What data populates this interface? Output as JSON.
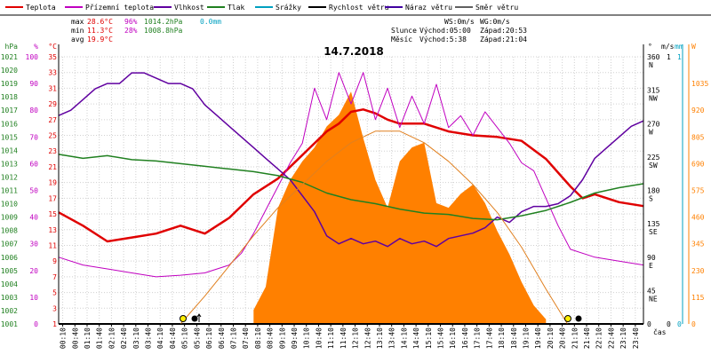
{
  "chart_data": {
    "type": "line",
    "title": "14.7.2018",
    "x_label": "čas",
    "x_ticks": [
      "00:10",
      "00:40",
      "01:10",
      "01:40",
      "02:10",
      "02:40",
      "03:10",
      "03:40",
      "04:10",
      "04:40",
      "05:10",
      "05:40",
      "06:10",
      "06:40",
      "07:10",
      "07:40",
      "08:10",
      "08:40",
      "09:10",
      "09:40",
      "10:10",
      "10:40",
      "11:10",
      "11:40",
      "12:10",
      "12:40",
      "13:10",
      "13:40",
      "14:10",
      "14:40",
      "15:10",
      "15:40",
      "16:10",
      "16:40",
      "17:10",
      "17:40",
      "18:10",
      "18:40",
      "19:10",
      "19:40",
      "20:10",
      "20:40",
      "21:10",
      "21:40",
      "22:10",
      "22:40",
      "23:10",
      "23:40"
    ],
    "legend": [
      {
        "name": "Teplota",
        "color": "#e00000"
      },
      {
        "name": "Přízemní teplota",
        "color": "#c000c0"
      },
      {
        "name": "Vlhkost",
        "color": "#6000a0"
      },
      {
        "name": "Tlak",
        "color": "#208020"
      },
      {
        "name": "Srážky",
        "color": "#00a0c0"
      },
      {
        "name": "Rychlost větru",
        "color": "#000000"
      },
      {
        "name": "Náraz větru",
        "color": "#4000a0"
      },
      {
        "name": "Směr větru",
        "color": "#606060"
      }
    ],
    "stats": {
      "max_label": "max",
      "max_temp": "28.6°C",
      "max_hum": "96%",
      "max_press": "1014.2hPa",
      "max_rain": "0.0mm",
      "min_label": "min",
      "min_temp": "11.3°C",
      "min_hum": "28%",
      "min_press": "1008.8hPa",
      "avg_label": "avg",
      "avg_temp": "19.9°C"
    },
    "wind_info": {
      "ws": "WS:0m/s",
      "wg": "WG:0m/s",
      "sun_label": "Slunce",
      "sun_rise": "Východ:05:00",
      "sun_set": "Západ:20:53",
      "moon_label": "Měsíc",
      "moon_rise": "Východ:5:38",
      "moon_set": "Západ:21:04"
    },
    "axes": {
      "pressure": {
        "unit": "hPa",
        "color": "#208020",
        "ticks": [
          "1021",
          "1020",
          "1019",
          "1018",
          "1017",
          "1016",
          "1015",
          "1014",
          "1013",
          "1012",
          "1011",
          "1010",
          "1009",
          "1008",
          "1007",
          "1006",
          "1005",
          "1004",
          "1003",
          "1002",
          "1001"
        ],
        "range": [
          1001,
          1021
        ]
      },
      "humidity": {
        "unit": "%",
        "color": "#c000c0",
        "ticks": [
          "100",
          "90",
          "80",
          "70",
          "60",
          "50",
          "40",
          "30",
          "20",
          "10",
          "0"
        ],
        "range": [
          0,
          100
        ]
      },
      "temperature": {
        "unit": "°C",
        "color": "#e00000",
        "ticks": [
          "35",
          "33",
          "31",
          "29",
          "27",
          "25",
          "23",
          "21",
          "19",
          "17",
          "15",
          "13",
          "11",
          "9",
          "7",
          "5",
          "3",
          "1"
        ],
        "range": [
          1,
          35
        ]
      },
      "direction": {
        "unit": "°",
        "color": "#000000",
        "ticks": [
          {
            "deg": "360",
            "dir": "N"
          },
          {
            "deg": "315",
            "dir": "NW"
          },
          {
            "deg": "270",
            "dir": "W"
          },
          {
            "deg": "225",
            "dir": "SW"
          },
          {
            "deg": "180",
            "dir": "S"
          },
          {
            "deg": "135",
            "dir": "SE"
          },
          {
            "deg": "90",
            "dir": "E"
          },
          {
            "deg": "45",
            "dir": "NE"
          },
          {
            "deg": "0",
            "dir": ""
          }
        ],
        "range": [
          0,
          360
        ]
      },
      "wind_speed": {
        "unit": "m/s",
        "color": "#000000",
        "ticks": [
          "1",
          "0"
        ],
        "range": [
          0,
          1
        ]
      },
      "rain": {
        "unit": "mm",
        "color": "#00a0c0",
        "ticks": [
          "1",
          "0"
        ],
        "range": [
          0,
          1
        ]
      },
      "solar": {
        "unit": "W",
        "color": "#ff8000",
        "ticks": [
          "1035",
          "920",
          "805",
          "690",
          "575",
          "460",
          "345",
          "230",
          "115",
          "0"
        ],
        "range": [
          0,
          1150
        ]
      }
    },
    "series": [
      {
        "name": "Teplota",
        "color": "#e00000",
        "axis": "temperature",
        "x": [
          0,
          1,
          2,
          3,
          4,
          5,
          6,
          6.5,
          7,
          8,
          9,
          10,
          11,
          11.5,
          12,
          12.5,
          13,
          13.5,
          14,
          15,
          16,
          17,
          18,
          19,
          20,
          21,
          21.5,
          22,
          23,
          24
        ],
        "values": [
          15.2,
          13.5,
          11.5,
          12.0,
          12.5,
          13.5,
          12.5,
          13.5,
          14.5,
          17.5,
          19.5,
          22.5,
          25.5,
          26.5,
          28.0,
          28.3,
          27.8,
          27.0,
          26.5,
          26.5,
          25.5,
          25.0,
          24.8,
          24.3,
          22.0,
          18.5,
          17.0,
          17.5,
          16.5,
          16.0
        ]
      },
      {
        "name": "Přízemní teplota",
        "color": "#c000c0",
        "axis": "temperature",
        "x": [
          0,
          1,
          2,
          3,
          4,
          5,
          6,
          7,
          7.5,
          8,
          8.5,
          9,
          9.5,
          10,
          10.5,
          11,
          11.5,
          12,
          12.5,
          13,
          13.5,
          14,
          14.5,
          15,
          15.5,
          16,
          16.5,
          17,
          17.5,
          18,
          18.5,
          19,
          19.5,
          20,
          20.5,
          21,
          22,
          23,
          24
        ],
        "values": [
          9.5,
          8.5,
          8.0,
          7.5,
          7.0,
          7.2,
          7.5,
          8.5,
          10.0,
          12.5,
          15.5,
          18.5,
          21.5,
          24.0,
          31.0,
          27.0,
          33.0,
          29.0,
          33.0,
          27.0,
          31.0,
          26.0,
          30.0,
          26.5,
          31.5,
          26.0,
          27.5,
          25.0,
          28.0,
          26.0,
          24.0,
          21.5,
          20.5,
          17.0,
          13.5,
          10.5,
          9.5,
          9.0,
          8.5
        ]
      },
      {
        "name": "Vlhkost",
        "color": "#6000a0",
        "axis": "humidity",
        "x": [
          0,
          0.5,
          1,
          1.5,
          2,
          2.5,
          3,
          3.5,
          4,
          4.5,
          5,
          5.5,
          6,
          6.5,
          7,
          7.5,
          8,
          8.5,
          9,
          9.5,
          10,
          10.5,
          11,
          11.5,
          12,
          12.5,
          13,
          13.5,
          14,
          14.5,
          15,
          15.5,
          16,
          16.5,
          17,
          17.5,
          18,
          18.5,
          19,
          19.5,
          20,
          20.5,
          21,
          21.5,
          22,
          22.5,
          23,
          23.5,
          24
        ],
        "values": [
          78,
          80,
          84,
          88,
          90,
          90,
          94,
          94,
          92,
          90,
          90,
          88,
          82,
          78,
          74,
          70,
          66,
          62,
          58,
          54,
          48,
          42,
          33,
          30,
          32,
          30,
          31,
          29,
          32,
          30,
          31,
          29,
          32,
          33,
          34,
          36,
          40,
          38,
          42,
          44,
          44,
          45,
          48,
          54,
          62,
          66,
          70,
          74,
          76
        ]
      },
      {
        "name": "Tlak",
        "color": "#208020",
        "axis": "pressure",
        "x": [
          0,
          1,
          2,
          3,
          4,
          5,
          6,
          7,
          8,
          9,
          10,
          11,
          12,
          13,
          14,
          15,
          16,
          17,
          18,
          19,
          20,
          21,
          22,
          23,
          24
        ],
        "values": [
          1013.7,
          1013.4,
          1013.6,
          1013.3,
          1013.2,
          1013.0,
          1012.8,
          1012.6,
          1012.4,
          1012.1,
          1011.6,
          1010.8,
          1010.3,
          1010.0,
          1009.6,
          1009.3,
          1009.2,
          1008.9,
          1008.8,
          1009.1,
          1009.5,
          1010.1,
          1010.8,
          1011.2,
          1011.5
        ]
      },
      {
        "name": "Rychlost větru",
        "color": "#000000",
        "axis": "wind_speed",
        "x": [
          0,
          24
        ],
        "values": [
          0,
          0
        ]
      },
      {
        "name": "Srážky",
        "color": "#00a0c0",
        "axis": "rain",
        "x": [
          0,
          24
        ],
        "values": [
          0,
          0
        ]
      },
      {
        "name": "Slunce (solar)",
        "color": "#ff8000",
        "axis": "solar",
        "x": [
          8,
          8.5,
          9,
          9.5,
          10,
          10.5,
          11,
          11.5,
          12,
          12.5,
          13,
          13.5,
          14,
          14.5,
          15,
          15.5,
          16,
          16.5,
          17,
          17.5,
          18,
          18.5,
          19,
          19.5,
          20
        ],
        "values": [
          60,
          160,
          500,
          620,
          700,
          760,
          850,
          900,
          1000,
          800,
          620,
          500,
          700,
          760,
          780,
          520,
          500,
          560,
          600,
          520,
          400,
          300,
          180,
          80,
          20
        ]
      },
      {
        "name": "Sun elevation",
        "color": "#e08020",
        "axis": "solar",
        "x": [
          5.0,
          6,
          7,
          8,
          9,
          10,
          11,
          12,
          13,
          14,
          15,
          16,
          17,
          18,
          19,
          20,
          20.88
        ],
        "values": [
          0,
          120,
          250,
          380,
          500,
          600,
          700,
          780,
          830,
          830,
          780,
          700,
          600,
          480,
          330,
          150,
          0
        ]
      }
    ]
  }
}
